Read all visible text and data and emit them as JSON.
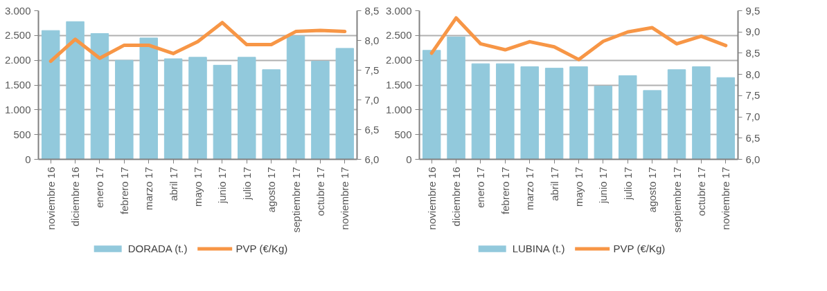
{
  "chart_data": [
    {
      "type": "bar",
      "categories": [
        "noviembre 16",
        "diciembre 16",
        "enero 17",
        "febrero 17",
        "marzo 17",
        "abril 17",
        "mayo 17",
        "junio 17",
        "julio 17",
        "agosto 17",
        "septiembre 17",
        "octubre 17",
        "noviembre 17"
      ],
      "series": [
        {
          "name": "DORADA (t.)",
          "type": "bar",
          "color": "#92c9dc",
          "values": [
            2600,
            2780,
            2540,
            2000,
            2450,
            2030,
            2060,
            1900,
            2060,
            1810,
            2490,
            1980,
            2240
          ]
        },
        {
          "name": "PVP (€/Kg)",
          "type": "line",
          "axis": "y2",
          "color": "#f79646",
          "values": [
            7.65,
            8.02,
            7.7,
            7.92,
            7.92,
            7.78,
            7.98,
            8.3,
            7.93,
            7.93,
            8.15,
            8.17,
            8.15
          ]
        }
      ],
      "ylim": [
        0,
        3000
      ],
      "yticks": [
        0,
        {
          "value": 500,
          "label": "500"
        },
        {
          "value": 1000,
          "label": "1.000"
        },
        {
          "value": 1500,
          "label": "1.500"
        },
        {
          "value": 2000,
          "label": "2.000"
        },
        {
          "value": 2500,
          "label": "2.500"
        },
        {
          "value": 3000,
          "label": "3.000"
        }
      ],
      "y2lim": [
        6,
        8.5
      ],
      "y2ticks": [
        {
          "value": 6,
          "label": "6,0"
        },
        {
          "value": 6.5,
          "label": "6,5"
        },
        {
          "value": 7,
          "label": "7,0"
        },
        {
          "value": 7.5,
          "label": "7,5"
        },
        {
          "value": 8,
          "label": "8,0"
        },
        {
          "value": 8.5,
          "label": "8,5"
        }
      ],
      "grid": "y",
      "legend": "bottom",
      "line_style": "solid",
      "marker": "none"
    },
    {
      "type": "bar",
      "categories": [
        "noviembre 16",
        "diciembre 16",
        "enero 17",
        "febrero 17",
        "marzo 17",
        "abril 17",
        "mayo 17",
        "junio 17",
        "julio 17",
        "agosto 17",
        "septiembre 17",
        "octubre 17",
        "noviembre 17"
      ],
      "series": [
        {
          "name": "LUBINA (t.)",
          "type": "bar",
          "color": "#92c9dc",
          "values": [
            2200,
            2470,
            1930,
            1930,
            1870,
            1840,
            1870,
            1480,
            1690,
            1390,
            1810,
            1870,
            1650
          ]
        },
        {
          "name": "PVP (€/Kg)",
          "type": "line",
          "axis": "y2",
          "color": "#f79646",
          "values": [
            8.5,
            9.33,
            8.72,
            8.58,
            8.77,
            8.65,
            8.35,
            8.78,
            9.0,
            9.1,
            8.72,
            8.9,
            8.68
          ]
        }
      ],
      "ylim": [
        0,
        3000
      ],
      "yticks": [
        0,
        {
          "value": 500,
          "label": "500"
        },
        {
          "value": 1000,
          "label": "1.000"
        },
        {
          "value": 1500,
          "label": "1.500"
        },
        {
          "value": 2000,
          "label": "2.000"
        },
        {
          "value": 2500,
          "label": "2.500"
        },
        {
          "value": 3000,
          "label": "3.000"
        }
      ],
      "y2lim": [
        6,
        9.5
      ],
      "y2ticks": [
        {
          "value": 6,
          "label": "6,0"
        },
        {
          "value": 6.5,
          "label": "6,5"
        },
        {
          "value": 7,
          "label": "7,0"
        },
        {
          "value": 7.5,
          "label": "7,5"
        },
        {
          "value": 8,
          "label": "8,0"
        },
        {
          "value": 8.5,
          "label": "8,5"
        },
        {
          "value": 9,
          "label": "9,0"
        },
        {
          "value": 9.5,
          "label": "9,5"
        }
      ],
      "grid": "y",
      "legend": "bottom",
      "line_style": "solid",
      "marker": "none"
    }
  ]
}
